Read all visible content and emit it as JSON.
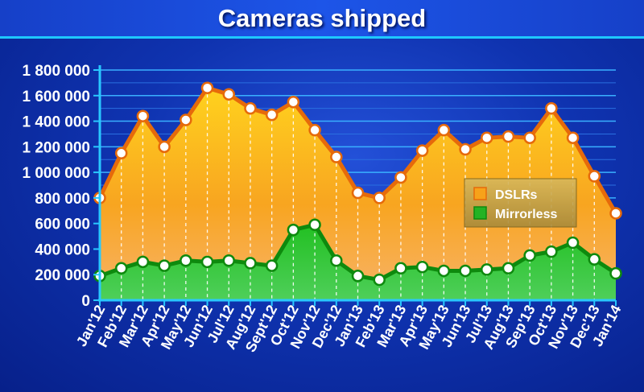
{
  "chart_data": {
    "type": "area",
    "title": "Cameras shipped",
    "xlabel": "",
    "ylabel": "",
    "ylim": [
      0,
      1800000
    ],
    "yticks": [
      0,
      200000,
      400000,
      600000,
      800000,
      1000000,
      1200000,
      1400000,
      1600000,
      1800000
    ],
    "ytick_labels": [
      "0",
      "200 000",
      "400 000",
      "600 000",
      "800 000",
      "1 000 000",
      "1 200 000",
      "1 400 000",
      "1 600 000",
      "1 800 000"
    ],
    "categories": [
      "Jan'12",
      "Feb'12",
      "Mar'12",
      "Apr'12",
      "May'12",
      "Jun'12",
      "Jul'12",
      "Aug'12",
      "Sept'12",
      "Oct'12",
      "Nov'12",
      "Dec'12",
      "Jan'13",
      "Feb'13",
      "Mar'13",
      "Apr'13",
      "May'13",
      "Jun'13",
      "Jul'13",
      "Aug'13",
      "Sep'13",
      "Oct'13",
      "Nov'13",
      "Dec'13",
      "Jan'14"
    ],
    "series": [
      {
        "name": "DSLRs",
        "color": "#f7a21a",
        "line_color": "#e66a0a",
        "values": [
          800000,
          1150000,
          1440000,
          1200000,
          1410000,
          1660000,
          1610000,
          1500000,
          1450000,
          1550000,
          1330000,
          1120000,
          840000,
          800000,
          960000,
          1170000,
          1330000,
          1180000,
          1270000,
          1280000,
          1270000,
          1500000,
          1270000,
          970000,
          680000
        ]
      },
      {
        "name": "Mirrorless",
        "color": "#24b324",
        "line_color": "#0e8a0e",
        "values": [
          190000,
          250000,
          300000,
          270000,
          310000,
          300000,
          310000,
          290000,
          270000,
          550000,
          590000,
          310000,
          190000,
          160000,
          250000,
          260000,
          230000,
          230000,
          240000,
          250000,
          350000,
          380000,
          450000,
          320000,
          210000
        ]
      }
    ],
    "legend_position": "right",
    "grid": true
  }
}
